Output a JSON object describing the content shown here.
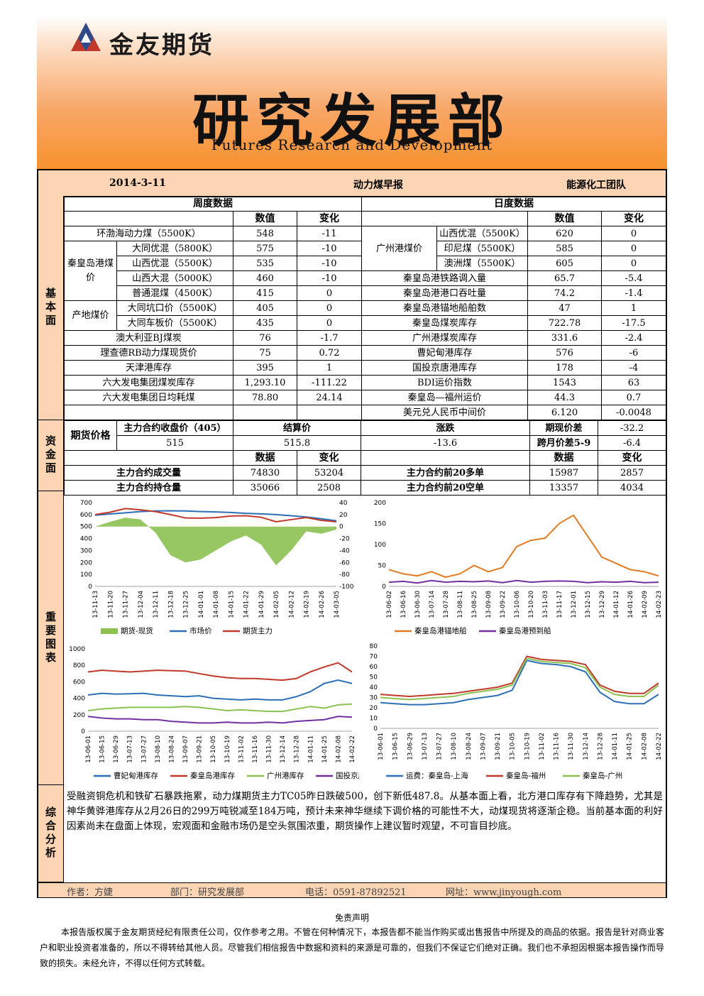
{
  "header": {
    "company": "金友期货",
    "dept_cn": "研究发展部",
    "dept_en": "Futures Research and Development"
  },
  "report": {
    "date": "2014-3-11",
    "title": "动力煤早报",
    "team": "能源化工团队"
  },
  "sections": {
    "basic": "基本面",
    "capital": "资金面",
    "charts": "重要图表",
    "analysis": "综合分析"
  },
  "weekly": {
    "title": "周度数据",
    "col_value": "数值",
    "col_change": "变化",
    "groups": {
      "qhd": "秦皇岛港煤价",
      "origin": "产地煤价"
    },
    "rows": [
      {
        "name": "环渤海动力煤（5500K）",
        "value": "548",
        "change": "-11"
      },
      {
        "name": "大同优混（5800K）",
        "value": "575",
        "change": "-10"
      },
      {
        "name": "山西优混（5500K）",
        "value": "535",
        "change": "-10"
      },
      {
        "name": "山西大混（5000K）",
        "value": "460",
        "change": "-10"
      },
      {
        "name": "普通混煤（4500K）",
        "value": "415",
        "change": "0"
      },
      {
        "name": "大同坑口价（5500K）",
        "value": "405",
        "change": "0"
      },
      {
        "name": "大同车板价（5500K）",
        "value": "435",
        "change": "0"
      },
      {
        "name": "澳大利亚BJ煤炭",
        "value": "76",
        "change": "-1.7"
      },
      {
        "name": "理查德RB动力煤现货价",
        "value": "75",
        "change": "0.72"
      },
      {
        "name": "天津港库存",
        "value": "395",
        "change": "1"
      },
      {
        "name": "六大发电集团煤炭库存",
        "value": "1,293.10",
        "change": "-111.22"
      },
      {
        "name": "六大发电集团日均耗煤",
        "value": "78.80",
        "change": "24.14"
      }
    ]
  },
  "daily": {
    "title": "日度数据",
    "col_value": "数值",
    "col_change": "变化",
    "gz_group": "广州港煤价",
    "rows": [
      {
        "name": "山西优混（5500K）",
        "value": "620",
        "change": "0"
      },
      {
        "name": "印尼煤（5500K）",
        "value": "585",
        "change": "0"
      },
      {
        "name": "澳洲煤（5500K）",
        "value": "605",
        "change": "0"
      },
      {
        "name": "秦皇岛港铁路调入量",
        "value": "65.7",
        "change": "-5.4"
      },
      {
        "name": "秦皇岛港港口吞吐量",
        "value": "74.2",
        "change": "-1.4"
      },
      {
        "name": "秦皇岛港锚地船舶数",
        "value": "47",
        "change": "1"
      },
      {
        "name": "秦皇岛煤炭库存",
        "value": "722.78",
        "change": "-17.5"
      },
      {
        "name": "广州港煤炭库存",
        "value": "331.6",
        "change": "-2.4"
      },
      {
        "name": "曹妃甸港库存",
        "value": "576",
        "change": "-6"
      },
      {
        "name": "国投京唐港库存",
        "value": "178",
        "change": "-4"
      },
      {
        "name": "BDI运价指数",
        "value": "1543",
        "change": "63"
      },
      {
        "name": "秦皇岛—福州运价",
        "value": "44.3",
        "change": "0.7"
      },
      {
        "name": "美元兑人民币中间价",
        "value": "6.120",
        "change": "-0.0048"
      }
    ]
  },
  "capital": {
    "futures_price_label": "期货价格",
    "main_close_label": "主力合约收盘价（405）",
    "main_close": "515",
    "settle_label": "结算价",
    "settle": "515.8",
    "change_label": "涨跌",
    "change": "-13.6",
    "basis_label": "期现价差",
    "basis": "-32.2",
    "spread_label": "跨月价差5-9",
    "spread": "-6.4",
    "col_data": "数据",
    "col_change": "变化",
    "volume_label": "主力合约成交量",
    "volume": "74830",
    "volume_change": "53204",
    "oi_label": "主力合约持仓量",
    "oi": "35066",
    "oi_change": "2508",
    "long_label": "主力合约前20多单",
    "long": "15987",
    "long_change": "2857",
    "short_label": "主力合约前20空单",
    "short": "13357",
    "short_change": "4034"
  },
  "chart_data": [
    {
      "type": "line",
      "x": [
        "13-11-13",
        "13-11-20",
        "13-11-27",
        "13-12-04",
        "13-12-11",
        "13-12-18",
        "13-12-25",
        "14-01-01",
        "14-01-08",
        "14-01-15",
        "14-01-22",
        "14-01-29",
        "14-02-05",
        "14-02-12",
        "14-02-19",
        "14-02-26",
        "14-03-05"
      ],
      "series": [
        {
          "name": "期货-现货",
          "axis": "right",
          "render": "area",
          "values": [
            0,
            8,
            15,
            12,
            -10,
            -48,
            -60,
            -55,
            -40,
            -25,
            -15,
            -30,
            -65,
            -40,
            -8,
            -12,
            -5
          ],
          "color": "#8cc152"
        },
        {
          "name": "市场价",
          "axis": "left",
          "values": [
            595,
            605,
            615,
            625,
            630,
            632,
            630,
            625,
            622,
            618,
            610,
            606,
            600,
            590,
            580,
            565,
            548
          ],
          "color": "#2e6fb6"
        },
        {
          "name": "期货主力",
          "axis": "left",
          "values": [
            600,
            620,
            650,
            640,
            625,
            600,
            572,
            570,
            575,
            588,
            590,
            578,
            540,
            558,
            575,
            552,
            540
          ],
          "color": "#c0392b"
        }
      ],
      "ylim_left": [
        0,
        700
      ],
      "ylim_right": [
        -100,
        40
      ],
      "yticks_left": [
        "0",
        "100",
        "200",
        "300",
        "400",
        "500",
        "600",
        "700"
      ],
      "yticks_right": [
        "-100",
        "-80",
        "-60",
        "-40",
        "-20",
        "0",
        "20",
        "40"
      ]
    },
    {
      "type": "line",
      "x": [
        "13-06-02",
        "13-06-16",
        "13-06-30",
        "13-07-14",
        "13-07-28",
        "13-08-11",
        "13-08-25",
        "13-09-08",
        "13-09-22",
        "13-10-06",
        "13-10-20",
        "13-11-03",
        "13-11-17",
        "13-12-01",
        "13-12-15",
        "13-12-29",
        "14-01-12",
        "14-01-26",
        "14-02-09",
        "14-02-23"
      ],
      "series": [
        {
          "name": "秦皇岛港锚地船",
          "values": [
            40,
            30,
            25,
            35,
            22,
            30,
            50,
            35,
            45,
            95,
            110,
            115,
            150,
            170,
            120,
            70,
            55,
            40,
            35,
            25
          ],
          "color": "#e07b24"
        },
        {
          "name": "秦皇岛港预到船",
          "values": [
            10,
            12,
            8,
            14,
            10,
            12,
            11,
            13,
            9,
            14,
            10,
            12,
            13,
            12,
            9,
            11,
            10,
            12,
            9,
            10
          ],
          "color": "#7030a0"
        }
      ],
      "ylim": [
        0,
        200
      ],
      "yticks": [
        "0",
        "50",
        "100",
        "150",
        "200"
      ]
    },
    {
      "type": "line",
      "x": [
        "13-06-01",
        "13-06-15",
        "13-06-29",
        "13-07-13",
        "13-07-27",
        "13-08-10",
        "13-08-24",
        "13-09-07",
        "13-09-21",
        "13-10-05",
        "13-10-19",
        "13-11-02",
        "13-11-16",
        "13-11-30",
        "13-12-14",
        "13-12-28",
        "14-01-11",
        "14-01-25",
        "14-02-08",
        "14-02-22"
      ],
      "series": [
        {
          "name": "曹妃甸港库存",
          "values": [
            440,
            460,
            450,
            455,
            460,
            440,
            430,
            420,
            430,
            400,
            390,
            380,
            390,
            380,
            380,
            420,
            480,
            580,
            620,
            580
          ],
          "color": "#2e6fb6"
        },
        {
          "name": "秦皇岛港库存",
          "values": [
            720,
            740,
            730,
            720,
            730,
            740,
            735,
            730,
            700,
            670,
            650,
            640,
            640,
            630,
            620,
            640,
            720,
            780,
            830,
            720
          ],
          "color": "#c0392b"
        },
        {
          "name": "广州港库存",
          "values": [
            250,
            270,
            280,
            290,
            290,
            290,
            290,
            300,
            290,
            270,
            250,
            260,
            250,
            240,
            240,
            270,
            300,
            280,
            320,
            330
          ],
          "color": "#8cc152"
        },
        {
          "name": "国投京唐港库存",
          "values": [
            180,
            160,
            150,
            150,
            140,
            140,
            120,
            110,
            100,
            100,
            110,
            100,
            100,
            110,
            100,
            120,
            130,
            140,
            180,
            170
          ],
          "color": "#7030a0"
        }
      ],
      "ylim": [
        0,
        1000
      ],
      "yticks": [
        "0",
        "200",
        "400",
        "600",
        "800",
        "1000"
      ]
    },
    {
      "type": "line",
      "x": [
        "13-06-01",
        "13-06-15",
        "13-06-29",
        "13-07-13",
        "13-07-27",
        "13-08-10",
        "13-08-24",
        "13-09-07",
        "13-09-21",
        "13-10-05",
        "13-10-19",
        "13-11-02",
        "13-11-16",
        "13-11-30",
        "13-12-14",
        "13-12-28",
        "14-01-11",
        "14-01-25",
        "14-02-08",
        "14-02-22"
      ],
      "series": [
        {
          "name": "运费：秦皇岛-上海",
          "values": [
            25,
            24,
            23,
            23,
            24,
            25,
            28,
            30,
            32,
            37,
            66,
            63,
            62,
            60,
            55,
            35,
            26,
            24,
            24,
            33
          ],
          "color": "#2e6fb6"
        },
        {
          "name": "秦皇岛-福州",
          "values": [
            33,
            32,
            31,
            32,
            33,
            34,
            36,
            38,
            40,
            44,
            70,
            67,
            66,
            65,
            62,
            42,
            36,
            34,
            34,
            44
          ],
          "color": "#c0392b"
        },
        {
          "name": "秦皇岛-广州",
          "values": [
            30,
            29,
            28,
            29,
            30,
            31,
            34,
            36,
            38,
            42,
            68,
            65,
            64,
            63,
            59,
            40,
            33,
            31,
            31,
            42
          ],
          "color": "#8cc152"
        }
      ],
      "ylim": [
        0,
        80
      ],
      "yticks": [
        "0",
        "10",
        "20",
        "30",
        "40",
        "50",
        "60",
        "70",
        "80"
      ]
    }
  ],
  "analysis": "受融资铜危机和铁矿石暴跌拖累，动力煤期货主力TC05昨日跌破500，创下新低487.8。从基本面上看，北方港口库存有下降趋势，尤其是神华黄骅港库存从2月26日的299万吨锐减至184万吨，预计未来神华继续下调价格的可能性不大，动煤现货将逐渐企稳。当前基本面的利好因素尚未在盘面上体现，宏观面和金融市场仍是空头氛围浓重，期货操作上建议暂时观望，不可盲目抄底。",
  "footer": {
    "author": "作者：方婕",
    "dept": "部门：研究发展部",
    "phone": "电话：0591-87892521",
    "web": "网址：www.jinyough.com"
  },
  "disclaimer": {
    "title": "免责声明",
    "body": "本报告版权属于金友期货经纪有限责任公司，仅作参考之用。不管在何种情况下，本报告都不能当作购买或出售报告中所提及的商品的依据。报告是针对商业客户和职业投资者准备的，所以不得转给其他人员。尽管我们相信报告中数据和资料的来源是可靠的，但我们不保证它们绝对正确。我们也不承担因根据本报告操作而导致的损失。未经允许，不得以任何方式转载。"
  }
}
